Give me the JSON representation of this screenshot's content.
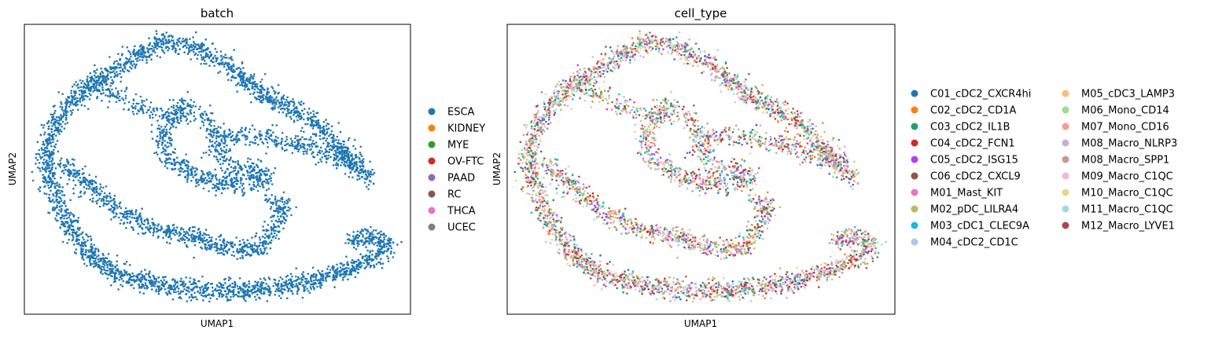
{
  "chart_data": [
    {
      "type": "scatter",
      "title": "batch",
      "xlabel": "UMAP1",
      "ylabel": "UMAP2",
      "grid": false,
      "ticks_shown": false,
      "legend_placement": "right",
      "legend_marker": "circle",
      "point_color_mode": "single",
      "point_color": "#1f77b4",
      "structure": "spiral-shaped UMAP embedding; all cells colored by batch ESCA",
      "series": [
        {
          "name": "ESCA",
          "color": "#1f77b4"
        },
        {
          "name": "KIDNEY",
          "color": "#ff7f0e"
        },
        {
          "name": "MYE",
          "color": "#2ca02c"
        },
        {
          "name": "OV-FTC",
          "color": "#d62728"
        },
        {
          "name": "PAAD",
          "color": "#9467bd"
        },
        {
          "name": "RC",
          "color": "#8c564b"
        },
        {
          "name": "THCA",
          "color": "#e377c2"
        },
        {
          "name": "UCEC",
          "color": "#7f7f7f"
        }
      ]
    },
    {
      "type": "scatter",
      "title": "cell_type",
      "xlabel": "UMAP1",
      "ylabel": "UMAP2",
      "grid": false,
      "ticks_shown": false,
      "legend_placement": "right",
      "legend_columns": 2,
      "legend_marker": "circle",
      "point_color_mode": "mixed",
      "structure": "same spiral embedding, cell types intermixed along the manifold",
      "series": [
        {
          "name": "C01_cDC2_CXCR4hi",
          "color": "#1f77b4"
        },
        {
          "name": "C02_cDC2_CD1A",
          "color": "#ff7f0e"
        },
        {
          "name": "C03_cDC2_IL1B",
          "color": "#279e68"
        },
        {
          "name": "C04_cDC2_FCN1",
          "color": "#d62728"
        },
        {
          "name": "C05_cDC2_ISG15",
          "color": "#aa40fc"
        },
        {
          "name": "C06_cDC2_CXCL9",
          "color": "#8c564b"
        },
        {
          "name": "M01_Mast_KIT",
          "color": "#e377c2"
        },
        {
          "name": "M02_pDC_LILRA4",
          "color": "#b5bd61"
        },
        {
          "name": "M03_cDC1_CLEC9A",
          "color": "#17becf"
        },
        {
          "name": "M04_cDC2_CD1C",
          "color": "#aec7e8"
        },
        {
          "name": "M05_cDC3_LAMP3",
          "color": "#ffbb78"
        },
        {
          "name": "M06_Mono_CD14",
          "color": "#98df8a"
        },
        {
          "name": "M07_Mono_CD16",
          "color": "#ff9896"
        },
        {
          "name": "M08_Macro_NLRP3",
          "color": "#c5b0d5"
        },
        {
          "name": "M08_Macro_SPP1",
          "color": "#c49c94"
        },
        {
          "name": "M09_Macro_C1QC",
          "color": "#f7b6d2"
        },
        {
          "name": "M10_Macro_C1QC",
          "color": "#dbdb8d"
        },
        {
          "name": "M11_Macro_C1QC",
          "color": "#9edae5"
        },
        {
          "name": "M12_Macro_LYVE1",
          "color": "#ad494a"
        }
      ]
    }
  ]
}
